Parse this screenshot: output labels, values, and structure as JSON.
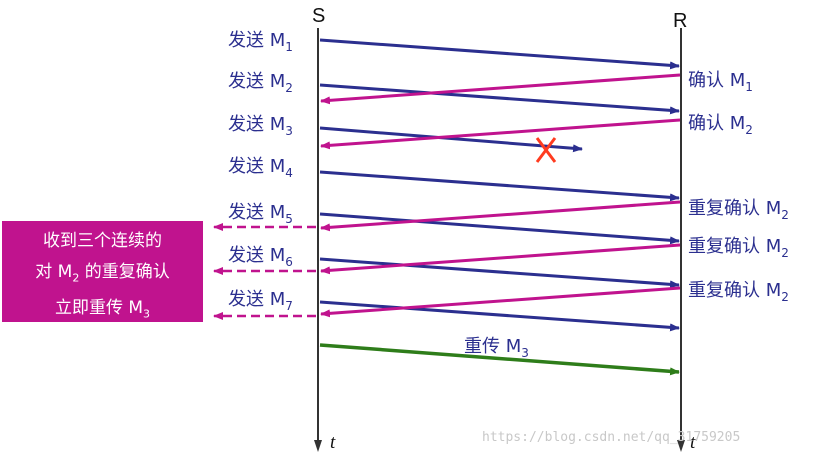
{
  "sender_label": "S",
  "receiver_label": "R",
  "time_label": "t",
  "colors": {
    "data_arrow": "#2b2f8f",
    "ack_arrow": "#c0138e",
    "retransmit_arrow": "#2e7d1a",
    "lost_mark": "#ff3b1f",
    "callout_bg": "#c0138e"
  },
  "send_labels": [
    {
      "prefix": "发送 M",
      "sub": "1"
    },
    {
      "prefix": "发送 M",
      "sub": "2"
    },
    {
      "prefix": "发送 M",
      "sub": "3"
    },
    {
      "prefix": "发送 M",
      "sub": "4"
    },
    {
      "prefix": "发送 M",
      "sub": "5"
    },
    {
      "prefix": "发送 M",
      "sub": "6"
    },
    {
      "prefix": "发送 M",
      "sub": "7"
    }
  ],
  "ack_labels": [
    {
      "prefix": "确认 M",
      "sub": "1"
    },
    {
      "prefix": "确认 M",
      "sub": "2"
    },
    {
      "prefix": "重复确认 M",
      "sub": "2"
    },
    {
      "prefix": "重复确认 M",
      "sub": "2"
    },
    {
      "prefix": "重复确认 M",
      "sub": "2"
    }
  ],
  "retransmit_label": {
    "prefix": "重传 M",
    "sub": "3"
  },
  "callout": {
    "line1": "收到三个连续的",
    "line2_prefix": "对 M",
    "line2_sub": "2",
    "line2_suffix": " 的重复确认",
    "line3_prefix": "立即重传 M",
    "line3_sub": "3"
  },
  "watermark": "https://blog.csdn.net/qq_31759205"
}
